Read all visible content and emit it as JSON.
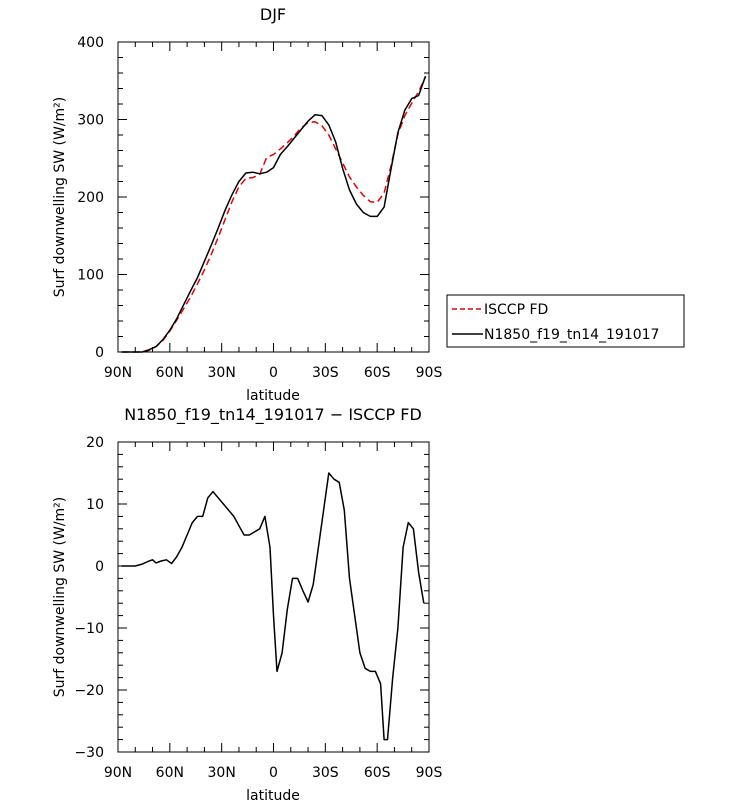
{
  "chart_data": [
    {
      "type": "line",
      "title": "DJF",
      "xlabel": "latitude",
      "ylabel": "Surf downwelling SW (W/m²)",
      "xlim": [
        90,
        -90
      ],
      "ylim": [
        0,
        400
      ],
      "xticks": [
        90,
        60,
        30,
        0,
        -30,
        -60,
        -90
      ],
      "xtick_labels": [
        "90N",
        "60N",
        "30N",
        "0",
        "30S",
        "60S",
        "90S"
      ],
      "yticks": [
        0,
        100,
        200,
        300,
        400
      ],
      "ytick_labels": [
        "0",
        "100",
        "200",
        "300",
        "400"
      ],
      "legend_position": "right",
      "series": [
        {
          "name": "ISCCP FD",
          "color": "#e60000",
          "dash": "dashed",
          "x": [
            88,
            84,
            80,
            76,
            72,
            68,
            64,
            60,
            56,
            52,
            48,
            44,
            40,
            36,
            32,
            28,
            24,
            20,
            16,
            12,
            8,
            4,
            0,
            -4,
            -8,
            -12,
            -16,
            -20,
            -24,
            -28,
            -32,
            -36,
            -40,
            -44,
            -48,
            -52,
            -56,
            -60,
            -64,
            -68,
            -72,
            -76,
            -80,
            -84,
            -88
          ],
          "y": [
            0,
            0,
            0,
            0,
            2,
            7,
            15,
            27,
            41,
            56,
            71,
            88,
            106,
            126,
            148,
            171,
            194,
            213,
            224,
            225,
            229,
            251,
            255,
            262,
            270,
            279,
            289,
            296,
            297,
            292,
            280,
            262,
            244,
            226,
            213,
            202,
            194,
            193,
            205,
            240,
            281,
            305,
            321,
            336,
            355
          ]
        },
        {
          "name": "N1850_f19_tn14_191017",
          "color": "#000000",
          "dash": "solid",
          "x": [
            88,
            84,
            80,
            76,
            72,
            68,
            64,
            60,
            56,
            52,
            48,
            44,
            40,
            36,
            32,
            28,
            24,
            20,
            16,
            12,
            8,
            4,
            0,
            -4,
            -8,
            -12,
            -16,
            -20,
            -24,
            -28,
            -32,
            -36,
            -40,
            -44,
            -48,
            -52,
            -56,
            -60,
            -64,
            -68,
            -72,
            -76,
            -80,
            -84,
            -88
          ],
          "y": [
            0,
            0,
            0,
            0,
            3,
            7,
            16,
            28,
            43,
            61,
            79,
            96,
            117,
            138,
            160,
            183,
            203,
            220,
            231,
            232,
            230,
            232,
            238,
            255,
            265,
            276,
            287,
            298,
            306,
            305,
            293,
            271,
            237,
            209,
            191,
            180,
            175,
            175,
            187,
            236,
            283,
            312,
            327,
            331,
            356
          ]
        }
      ]
    },
    {
      "type": "line",
      "title": "N1850_f19_tn14_191017 − ISCCP FD",
      "xlabel": "latitude",
      "ylabel": "Surf downwelling SW (W/m²)",
      "xlim": [
        90,
        -90
      ],
      "ylim": [
        -30,
        20
      ],
      "xticks": [
        90,
        60,
        30,
        0,
        -30,
        -60,
        -90
      ],
      "xtick_labels": [
        "90N",
        "60N",
        "30N",
        "0",
        "30S",
        "60S",
        "90S"
      ],
      "yticks": [
        -30,
        -20,
        -10,
        0,
        10,
        20
      ],
      "ytick_labels": [
        "−30",
        "−20",
        "−10",
        "0",
        "10",
        "20"
      ],
      "series": [
        {
          "color": "#000000",
          "dash": "solid",
          "x": [
            88,
            84,
            80,
            76,
            72,
            70,
            68,
            65,
            62,
            59,
            56,
            53,
            50,
            47,
            44,
            41,
            38,
            35,
            32,
            29,
            26,
            23,
            20,
            17,
            14,
            11,
            8,
            5,
            2,
            0,
            -2,
            -5,
            -8,
            -11,
            -14,
            -17,
            -20,
            -23,
            -26,
            -29,
            -32,
            -35,
            -38,
            -41,
            -44,
            -47,
            -50,
            -53,
            -56,
            -59,
            -62,
            -64,
            -66,
            -69,
            -72,
            -75,
            -78,
            -81,
            -84,
            -87
          ],
          "y": [
            0,
            0,
            0,
            0.3,
            0.8,
            1,
            0.5,
            0.8,
            1,
            0.4,
            1.5,
            3,
            5,
            7,
            8,
            8,
            11,
            12,
            11,
            10,
            9,
            8,
            6.5,
            5,
            5,
            5.5,
            6,
            8,
            3,
            -8,
            -17,
            -14,
            -7,
            -2,
            -2,
            -4,
            -5.8,
            -3,
            3,
            9,
            15,
            14,
            13.5,
            9,
            -2,
            -8,
            -14,
            -16.5,
            -17,
            -17,
            -19,
            -28,
            -28,
            -18,
            -10,
            3,
            7,
            6,
            -1,
            -6
          ]
        }
      ]
    }
  ]
}
